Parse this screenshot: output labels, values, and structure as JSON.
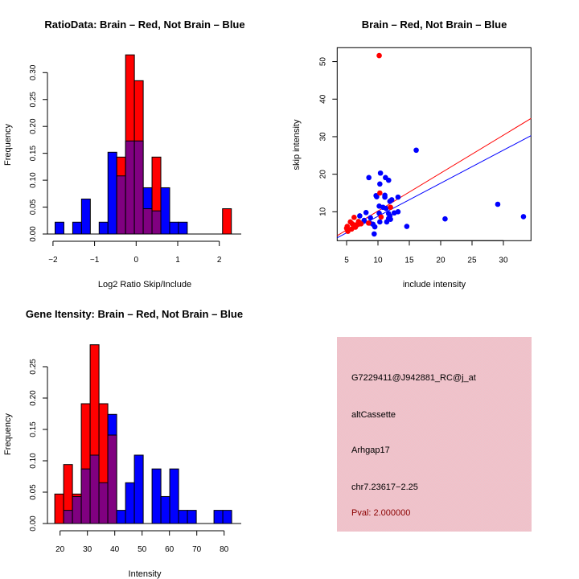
{
  "colors": {
    "brain": "#ff0000",
    "not_brain": "#0000ff",
    "overlap": "#800080"
  },
  "chart_data": [
    {
      "type": "bar",
      "subtype": "overlaid-histogram",
      "title": "RatioData: Brain – Red, Not Brain – Blue",
      "xlabel": "Log2 Ratio Skip/Include",
      "ylabel": "Frequency",
      "xlim": [
        -2.1,
        2.5
      ],
      "ylim": [
        0,
        0.3
      ],
      "xticks": [
        -2,
        -1,
        0,
        1,
        2
      ],
      "xtick_labels": [
        "−2",
        "−1",
        "0",
        "1",
        "2"
      ],
      "yticks": [
        0,
        0.05,
        0.1,
        0.15,
        0.2,
        0.25,
        0.3
      ],
      "ytick_labels": [
        "0.00",
        "0.05",
        "0.10",
        "0.15",
        "0.20",
        "0.25",
        "0.30"
      ],
      "bin_start": -1.95,
      "bin_width": 0.212,
      "series": [
        {
          "name": "Brain",
          "color": "#ff0000",
          "bins": [
            7,
            8,
            9,
            10,
            11,
            19
          ],
          "values": [
            0.143,
            0.333,
            0.285,
            0.047,
            0.143,
            0.047
          ]
        },
        {
          "name": "Not Brain",
          "color": "#0000ff",
          "bins": [
            0,
            2,
            3,
            5,
            6,
            7,
            8,
            9,
            10,
            11,
            12,
            13,
            14
          ],
          "values": [
            0.022,
            0.022,
            0.065,
            0.022,
            0.152,
            0.108,
            0.173,
            0.173,
            0.086,
            0.043,
            0.086,
            0.022,
            0.022
          ]
        }
      ]
    },
    {
      "type": "scatter",
      "title": "Brain – Red, Not Brain – Blue",
      "xlabel": "include intensity",
      "ylabel": "skip intensity",
      "xlim": [
        3.5,
        34.4
      ],
      "ylim": [
        2.3,
        53.7
      ],
      "xticks": [
        5,
        10,
        15,
        20,
        25,
        30
      ],
      "xtick_labels": [
        "5",
        "10",
        "15",
        "20",
        "25",
        "30"
      ],
      "yticks": [
        10,
        20,
        30,
        40,
        50
      ],
      "ytick_labels": [
        "10",
        "20",
        "30",
        "40",
        "50"
      ],
      "series": [
        {
          "name": "Brain",
          "color": "#ff0000",
          "points": [
            [
              10.2,
              51.6
            ],
            [
              10.3,
              15.0
            ],
            [
              12.0,
              11.2
            ],
            [
              10.5,
              8.6
            ],
            [
              6.2,
              8.5
            ],
            [
              5.6,
              7.3
            ],
            [
              7.3,
              6.8
            ],
            [
              5.9,
              6.8
            ],
            [
              6.5,
              6.5
            ],
            [
              5.1,
              6.1
            ],
            [
              6.4,
              5.9
            ],
            [
              5.2,
              4.8
            ],
            [
              6.8,
              6.6
            ],
            [
              5.8,
              5.4
            ],
            [
              6.9,
              7.4
            ],
            [
              5.0,
              5.6
            ],
            [
              8.5,
              7.0
            ]
          ],
          "fit": {
            "slope": 1.01,
            "intercept": 0.1
          }
        },
        {
          "name": "Not Brain",
          "color": "#0000ff",
          "points": [
            [
              16.1,
              26.4
            ],
            [
              8.55,
              19.1
            ],
            [
              10.4,
              20.3
            ],
            [
              11.2,
              19.1
            ],
            [
              11.7,
              18.4
            ],
            [
              10.3,
              17.4
            ],
            [
              9.7,
              14.3
            ],
            [
              11.1,
              14.4
            ],
            [
              9.8,
              14.0
            ],
            [
              11.1,
              13.9
            ],
            [
              13.2,
              13.9
            ],
            [
              12.2,
              13.2
            ],
            [
              11.9,
              12.8
            ],
            [
              10.2,
              11.5
            ],
            [
              10.8,
              11.2
            ],
            [
              11.3,
              10.9
            ],
            [
              13.2,
              10.0
            ],
            [
              12.6,
              9.7
            ],
            [
              10.2,
              9.6
            ],
            [
              11.7,
              9.5
            ],
            [
              8.1,
              9.8
            ],
            [
              7.1,
              8.9
            ],
            [
              11.9,
              8.9
            ],
            [
              11.7,
              8.2
            ],
            [
              8.8,
              8.4
            ],
            [
              7.8,
              7.7
            ],
            [
              10.3,
              7.3
            ],
            [
              20.7,
              8.1
            ],
            [
              29.1,
              12.0
            ],
            [
              33.2,
              8.7
            ],
            [
              14.6,
              6.1
            ],
            [
              8.7,
              7.0
            ],
            [
              9.2,
              6.7
            ],
            [
              9.5,
              6.0
            ],
            [
              9.4,
              4.1
            ],
            [
              12.0,
              8.0
            ],
            [
              11.4,
              7.3
            ]
          ],
          "fit": {
            "slope": 0.88,
            "intercept": 0.0
          }
        }
      ]
    },
    {
      "type": "bar",
      "subtype": "overlaid-histogram",
      "title": "Gene Itensity: Brain – Red, Not Brain – Blue",
      "xlabel": "Intensity",
      "ylabel": "Frequency",
      "xlim": [
        16,
        87
      ],
      "ylim": [
        0,
        0.285
      ],
      "xticks": [
        20,
        30,
        40,
        50,
        60,
        70,
        80
      ],
      "xtick_labels": [
        "20",
        "30",
        "40",
        "50",
        "60",
        "70",
        "80"
      ],
      "yticks": [
        0,
        0.05,
        0.1,
        0.15,
        0.2,
        0.25
      ],
      "ytick_labels": [
        "0.00",
        "0.05",
        "0.10",
        "0.15",
        "0.20",
        "0.25"
      ],
      "bin_start": 18.06,
      "bin_width": 3.235,
      "series": [
        {
          "name": "Brain",
          "color": "#ff0000",
          "bins": [
            0,
            1,
            2,
            3,
            4,
            5,
            6
          ],
          "values": [
            0.047,
            0.094,
            0.047,
            0.191,
            0.285,
            0.191,
            0.141
          ]
        },
        {
          "name": "Not Brain",
          "color": "#0000ff",
          "bins": [
            1,
            2,
            3,
            4,
            5,
            6,
            7,
            8,
            9,
            11,
            12,
            13,
            14,
            15,
            18,
            19
          ],
          "values": [
            0.021,
            0.043,
            0.087,
            0.109,
            0.065,
            0.174,
            0.021,
            0.065,
            0.109,
            0.087,
            0.043,
            0.087,
            0.021,
            0.021,
            0.021,
            0.021
          ]
        }
      ]
    }
  ],
  "info_panel": {
    "probe_id": "G7229411@J942881_RC@j_at",
    "event_type": "altCassette",
    "gene": "Arhgap17",
    "location": "chr7.23617−2.25",
    "pval": "Pval: 2.000000"
  }
}
